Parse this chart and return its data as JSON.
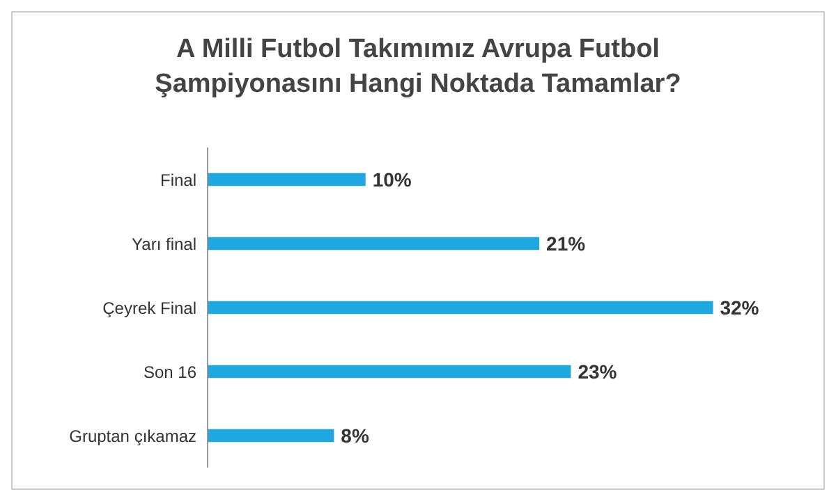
{
  "chart_data": {
    "type": "bar",
    "orientation": "horizontal",
    "title": "A Milli Futbol Takımımız Avrupa Futbol Şampiyonasını Hangi Noktada Tamamlar?",
    "categories": [
      "Final",
      "Yarı final",
      "Çeyrek Final",
      "Son 16",
      "Gruptan çıkamaz"
    ],
    "values": [
      10,
      21,
      32,
      23,
      8
    ],
    "value_labels": [
      "10%",
      "21%",
      "32%",
      "23%",
      "8%"
    ],
    "color": "#1ea7e1"
  }
}
